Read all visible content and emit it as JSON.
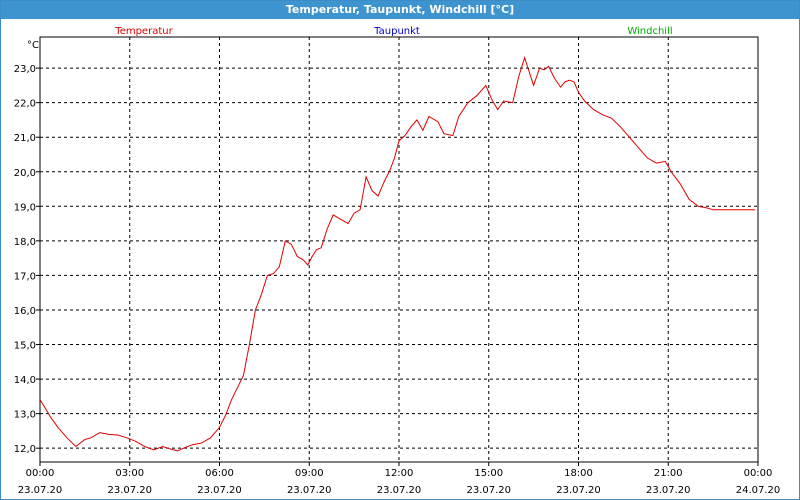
{
  "window": {
    "title": "Temperatur, Taupunkt, Windchill [°C]"
  },
  "colors": {
    "title_bar": "#3d94cf",
    "temperatur": "#e00000",
    "taupunkt": "#0000cc",
    "windchill": "#00aa00"
  },
  "chart_data": {
    "type": "line",
    "title": "Temperatur, Taupunkt, Windchill [°C]",
    "ylabel": "°C",
    "xlabel": "",
    "ylim": [
      11.6,
      23.9
    ],
    "xlim": [
      0,
      24
    ],
    "grid": true,
    "legend_placement": "top",
    "y_ticks": [
      "12,0",
      "13,0",
      "14,0",
      "15,0",
      "16,0",
      "17,0",
      "18,0",
      "19,0",
      "20,0",
      "21,0",
      "22,0",
      "23,0"
    ],
    "y_tick_values": [
      12,
      13,
      14,
      15,
      16,
      17,
      18,
      19,
      20,
      21,
      22,
      23
    ],
    "x_ticks": [
      {
        "time": "00:00",
        "date": "23.07.20",
        "hour": 0
      },
      {
        "time": "03:00",
        "date": "23.07.20",
        "hour": 3
      },
      {
        "time": "06:00",
        "date": "23.07.20",
        "hour": 6
      },
      {
        "time": "09:00",
        "date": "23.07.20",
        "hour": 9
      },
      {
        "time": "12:00",
        "date": "23.07.20",
        "hour": 12
      },
      {
        "time": "15:00",
        "date": "23.07.20",
        "hour": 15
      },
      {
        "time": "18:00",
        "date": "23.07.20",
        "hour": 18
      },
      {
        "time": "21:00",
        "date": "23.07.20",
        "hour": 21
      },
      {
        "time": "00:00",
        "date": "24.07.20",
        "hour": 24
      }
    ],
    "legend": [
      "Temperatur",
      "Taupunkt",
      "Windchill"
    ],
    "series": [
      {
        "name": "Temperatur",
        "color": "#e00000",
        "x": [
          0,
          0.15,
          0.35,
          0.6,
          0.9,
          1.2,
          1.5,
          1.7,
          2.0,
          2.3,
          2.6,
          2.9,
          3.2,
          3.5,
          3.8,
          4.1,
          4.35,
          4.6,
          4.85,
          5.1,
          5.4,
          5.7,
          6.0,
          6.2,
          6.4,
          6.6,
          6.8,
          7.0,
          7.2,
          7.4,
          7.6,
          7.8,
          8.0,
          8.2,
          8.4,
          8.6,
          8.8,
          8.95,
          9.1,
          9.25,
          9.4,
          9.6,
          9.8,
          10.0,
          10.3,
          10.5,
          10.7,
          10.9,
          11.1,
          11.3,
          11.5,
          11.7,
          11.85,
          12.0,
          12.2,
          12.4,
          12.6,
          12.8,
          13.0,
          13.3,
          13.5,
          13.8,
          14.0,
          14.3,
          14.6,
          14.9,
          15.1,
          15.3,
          15.5,
          15.8,
          16.0,
          16.2,
          16.5,
          16.7,
          16.85,
          17.0,
          17.2,
          17.4,
          17.55,
          17.7,
          17.85,
          18.0,
          18.2,
          18.5,
          18.8,
          19.1,
          19.4,
          19.7,
          20.0,
          20.3,
          20.6,
          20.9,
          21.1,
          21.4,
          21.7,
          22.0,
          22.3,
          22.5,
          22.8,
          23.1,
          23.4,
          23.7,
          23.9
        ],
        "values": [
          13.4,
          13.2,
          12.9,
          12.6,
          12.3,
          12.05,
          12.25,
          12.3,
          12.45,
          12.4,
          12.38,
          12.3,
          12.2,
          12.05,
          11.95,
          12.05,
          11.98,
          11.92,
          12.02,
          12.1,
          12.15,
          12.3,
          12.6,
          12.95,
          13.4,
          13.75,
          14.1,
          15.0,
          16.0,
          16.45,
          17.0,
          17.05,
          17.25,
          18.0,
          17.9,
          17.55,
          17.45,
          17.3,
          17.55,
          17.75,
          17.8,
          18.35,
          18.75,
          18.65,
          18.5,
          18.8,
          18.9,
          19.85,
          19.45,
          19.3,
          19.7,
          20.05,
          20.4,
          20.9,
          21.05,
          21.3,
          21.5,
          21.2,
          21.6,
          21.45,
          21.1,
          21.05,
          21.6,
          22.0,
          22.2,
          22.5,
          22.1,
          21.8,
          22.05,
          22.0,
          22.75,
          23.3,
          22.5,
          23.0,
          22.95,
          23.05,
          22.7,
          22.45,
          22.6,
          22.65,
          22.6,
          22.3,
          22.05,
          21.8,
          21.65,
          21.55,
          21.3,
          21.0,
          20.7,
          20.4,
          20.25,
          20.3,
          20.0,
          19.65,
          19.2,
          19.0,
          18.95,
          18.9,
          18.9,
          18.9,
          18.9,
          18.9,
          18.9
        ],
        "note_unused": ""
      }
    ]
  }
}
